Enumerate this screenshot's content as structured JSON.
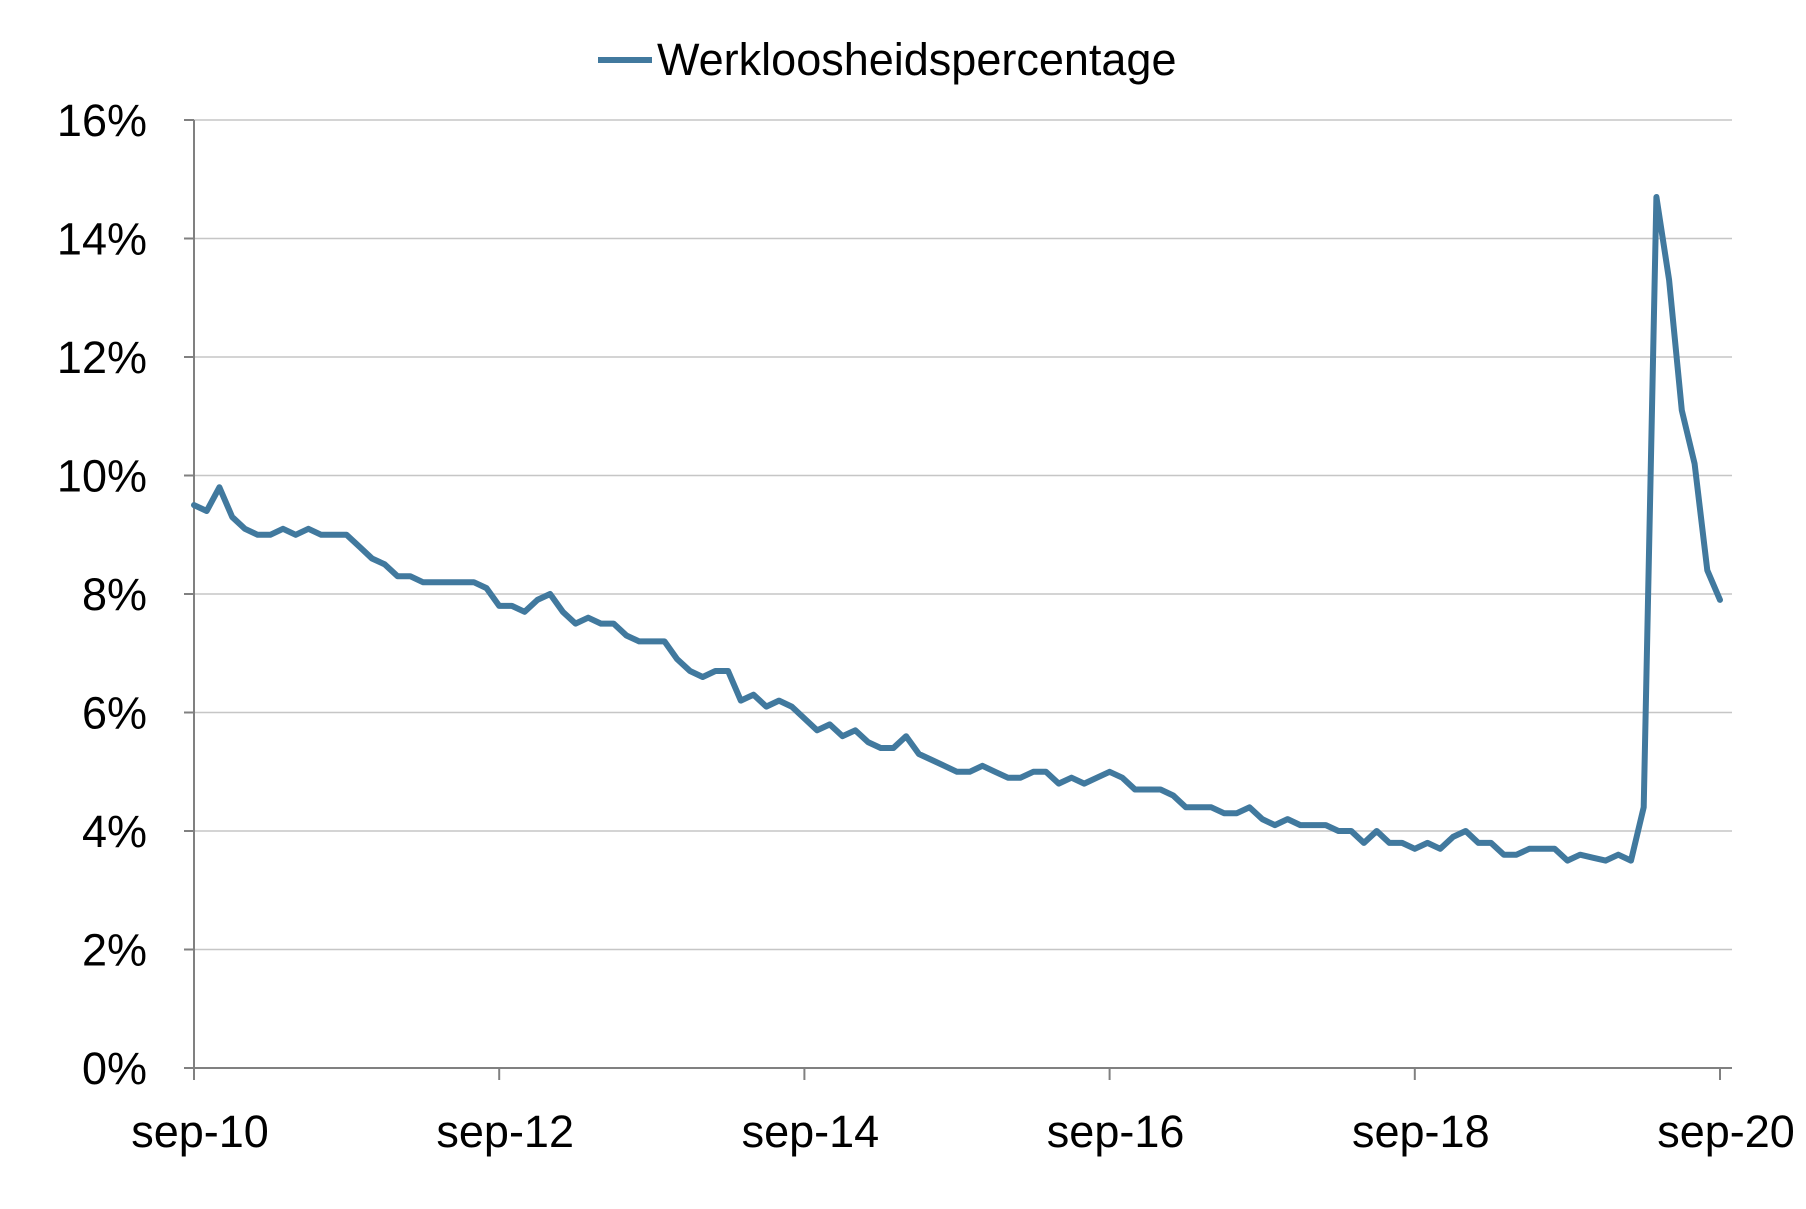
{
  "chart_data": {
    "type": "line",
    "title": "",
    "xlabel": "",
    "ylabel": "",
    "ylim": [
      0,
      16
    ],
    "y_ticks": [
      "0%",
      "2%",
      "4%",
      "6%",
      "8%",
      "10%",
      "12%",
      "14%",
      "16%"
    ],
    "x_ticks": [
      "sep-10",
      "sep-12",
      "sep-14",
      "sep-16",
      "sep-18",
      "sep-20"
    ],
    "x_range": [
      "2010-09",
      "2020-09"
    ],
    "grid": "horizontal",
    "legend": "top-center",
    "series": [
      {
        "name": "Werkloosheidspercentage",
        "color": "#41799e",
        "x": [
          "2010-09",
          "2010-10",
          "2010-11",
          "2010-12",
          "2011-01",
          "2011-02",
          "2011-03",
          "2011-04",
          "2011-05",
          "2011-06",
          "2011-07",
          "2011-08",
          "2011-09",
          "2011-10",
          "2011-11",
          "2011-12",
          "2012-01",
          "2012-02",
          "2012-03",
          "2012-04",
          "2012-05",
          "2012-06",
          "2012-07",
          "2012-08",
          "2012-09",
          "2012-10",
          "2012-11",
          "2012-12",
          "2013-01",
          "2013-02",
          "2013-03",
          "2013-04",
          "2013-05",
          "2013-06",
          "2013-07",
          "2013-08",
          "2013-09",
          "2013-10",
          "2013-11",
          "2013-12",
          "2014-01",
          "2014-02",
          "2014-03",
          "2014-04",
          "2014-05",
          "2014-06",
          "2014-07",
          "2014-08",
          "2014-09",
          "2014-10",
          "2014-11",
          "2014-12",
          "2015-01",
          "2015-02",
          "2015-03",
          "2015-04",
          "2015-05",
          "2015-06",
          "2015-07",
          "2015-08",
          "2015-09",
          "2015-10",
          "2015-11",
          "2015-12",
          "2016-01",
          "2016-02",
          "2016-03",
          "2016-04",
          "2016-05",
          "2016-06",
          "2016-07",
          "2016-08",
          "2016-09",
          "2016-10",
          "2016-11",
          "2016-12",
          "2017-01",
          "2017-02",
          "2017-03",
          "2017-04",
          "2017-05",
          "2017-06",
          "2017-07",
          "2017-08",
          "2017-09",
          "2017-10",
          "2017-11",
          "2017-12",
          "2018-01",
          "2018-02",
          "2018-03",
          "2018-04",
          "2018-05",
          "2018-06",
          "2018-07",
          "2018-08",
          "2018-09",
          "2018-10",
          "2018-11",
          "2018-12",
          "2019-01",
          "2019-02",
          "2019-03",
          "2019-04",
          "2019-05",
          "2019-06",
          "2019-07",
          "2019-08",
          "2019-09",
          "2019-10",
          "2019-11",
          "2019-12",
          "2020-01",
          "2020-02",
          "2020-03",
          "2020-04",
          "2020-05",
          "2020-06",
          "2020-07",
          "2020-08",
          "2020-09"
        ],
        "values": [
          9.5,
          9.4,
          9.8,
          9.3,
          9.1,
          9.0,
          9.0,
          9.1,
          9.0,
          9.1,
          9.0,
          9.0,
          9.0,
          8.8,
          8.6,
          8.5,
          8.3,
          8.3,
          8.2,
          8.2,
          8.2,
          8.2,
          8.2,
          8.1,
          7.8,
          7.8,
          7.7,
          7.9,
          8.0,
          7.7,
          7.5,
          7.6,
          7.5,
          7.5,
          7.3,
          7.2,
          7.2,
          7.2,
          6.9,
          6.7,
          6.6,
          6.7,
          6.7,
          6.2,
          6.3,
          6.1,
          6.2,
          6.1,
          5.9,
          5.7,
          5.8,
          5.6,
          5.7,
          5.5,
          5.4,
          5.4,
          5.6,
          5.3,
          5.2,
          5.1,
          5.0,
          5.0,
          5.1,
          5.0,
          4.9,
          4.9,
          5.0,
          5.0,
          4.8,
          4.9,
          4.8,
          4.9,
          5.0,
          4.9,
          4.7,
          4.7,
          4.7,
          4.6,
          4.4,
          4.4,
          4.4,
          4.3,
          4.3,
          4.4,
          4.2,
          4.1,
          4.2,
          4.1,
          4.1,
          4.1,
          4.0,
          4.0,
          3.8,
          4.0,
          3.8,
          3.8,
          3.7,
          3.8,
          3.7,
          3.9,
          4.0,
          3.8,
          3.8,
          3.6,
          3.6,
          3.7,
          3.7,
          3.7,
          3.5,
          3.6,
          3.55,
          3.5,
          3.6,
          3.5,
          4.4,
          14.7,
          13.3,
          11.1,
          10.2,
          8.4,
          7.9
        ]
      }
    ]
  }
}
